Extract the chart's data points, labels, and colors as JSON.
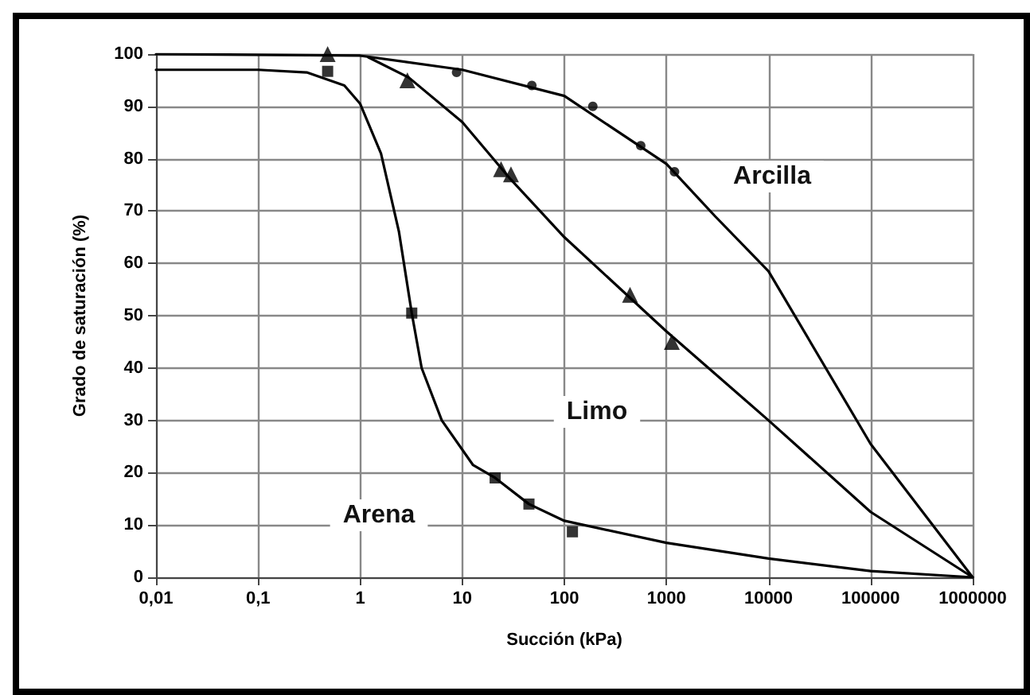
{
  "chart_data": {
    "type": "line",
    "xlabel": "Succión (kPa)",
    "ylabel": "Grado de saturación (%)",
    "log": "x",
    "grid": true,
    "xlim": [
      0.01,
      1000000
    ],
    "xticks": [
      {
        "value": 0.01,
        "label": "0,01"
      },
      {
        "value": 0.1,
        "label": "0,1"
      },
      1,
      10,
      100,
      1000,
      10000,
      100000,
      1000000
    ],
    "ylim": [
      0,
      100
    ],
    "yticks": [
      0,
      10,
      20,
      30,
      40,
      50,
      60,
      70,
      80,
      90,
      100
    ],
    "series": [
      {
        "marker": "none",
        "color": "#000000",
        "x": [
          0.01,
          1,
          10,
          100,
          1000,
          3000,
          10000,
          100000,
          1000000
        ],
        "values": [
          100,
          99.7,
          97,
          92,
          79,
          69,
          58.5,
          25.5,
          0
        ]
      },
      {
        "marker": "none",
        "color": "#000000",
        "x": [
          1.2,
          3,
          10,
          30,
          100,
          1000,
          10000,
          100000,
          1000000
        ],
        "values": [
          99.4,
          95.5,
          87,
          76,
          65,
          47,
          30,
          12.5,
          0
        ]
      },
      {
        "marker": "none",
        "color": "#000000",
        "x": [
          0.01,
          0.1,
          0.3,
          0.7,
          1,
          1.6,
          2.4,
          3.2,
          4,
          6.3,
          12.7,
          21,
          45,
          100,
          1000,
          10000,
          100000,
          1000000
        ],
        "values": [
          97,
          97,
          96.5,
          94,
          90.5,
          81,
          66,
          50.5,
          40,
          30,
          21.5,
          19,
          14,
          10.8,
          6.6,
          3.6,
          1.2,
          0
        ]
      },
      {
        "type": "scatter",
        "marker": "circle",
        "color": "#000000",
        "x": [
          8.8,
          48,
          190,
          560,
          1200
        ],
        "values": [
          96.5,
          94,
          90,
          82.5,
          77.5
        ]
      },
      {
        "type": "scatter",
        "marker": "triangle",
        "color": "#000000",
        "x": [
          0.48,
          2.9,
          24,
          30,
          440,
          1130
        ],
        "values": [
          100,
          95,
          78,
          77,
          54,
          45
        ]
      },
      {
        "type": "scatter",
        "marker": "square",
        "color": "#000000",
        "x": [
          0.48,
          3.2,
          21,
          45,
          120
        ],
        "values": [
          96.7,
          50.5,
          19,
          14,
          8.7
        ]
      }
    ],
    "annotations": [
      "Arcilla",
      "Limo",
      "Arena"
    ]
  }
}
